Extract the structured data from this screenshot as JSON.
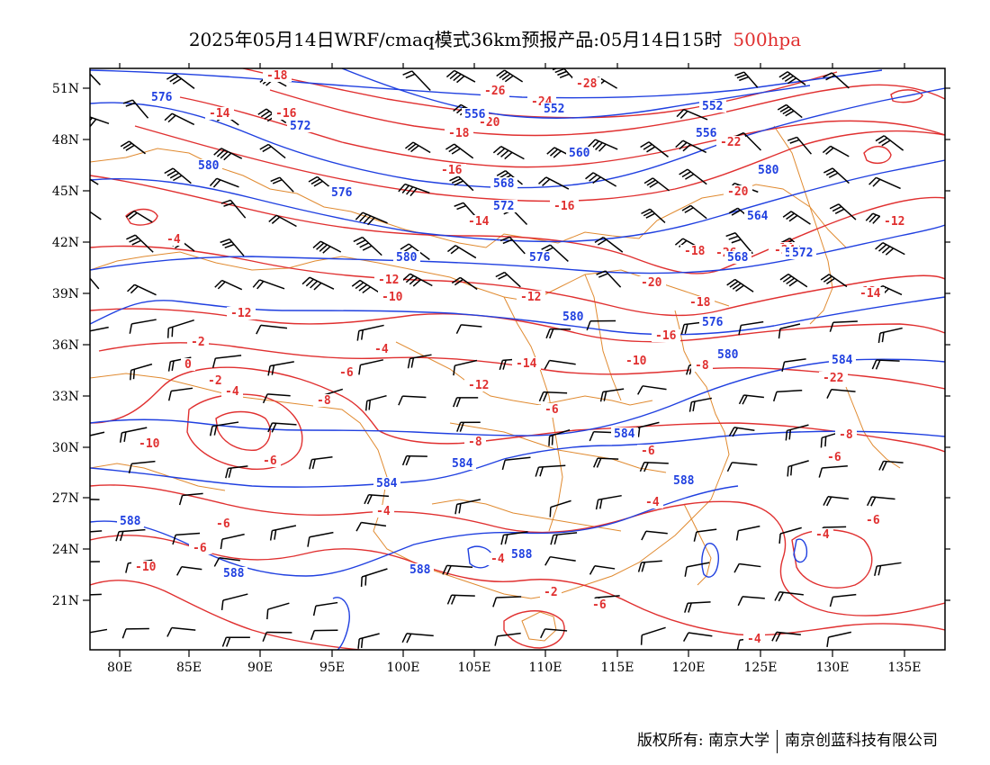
{
  "header": {
    "title": "2025年05月14日WRF/cmaq模式36km预报产品:05月14日15时",
    "level": "500hpa"
  },
  "colors": {
    "temperature": "#e03030",
    "height": "#2040e0",
    "border": "#e08a30",
    "wind": "#000000"
  },
  "axes": {
    "lon_labels": [
      "80E",
      "85E",
      "90E",
      "95E",
      "100E",
      "105E",
      "110E",
      "115E",
      "120E",
      "125E",
      "130E",
      "135E"
    ],
    "lat_labels": [
      "51N",
      "48N",
      "45N",
      "42N",
      "39N",
      "36N",
      "33N",
      "30N",
      "27N",
      "24N",
      "21N"
    ]
  },
  "temperature_labels": [
    "-18",
    "-16",
    "-14",
    "-16",
    "-12",
    "-10",
    "-12",
    "-14",
    "-18",
    "-20",
    "-22",
    "-24",
    "-26",
    "-28",
    "-20",
    "-18",
    "-16",
    "-14",
    "-12",
    "-10",
    "-8",
    "-6",
    "-4",
    "-2",
    "0",
    "-2",
    "-4",
    "-6",
    "-8",
    "-10",
    "-12",
    "-4",
    "-6",
    "-8",
    "-6",
    "-4",
    "-6",
    "-8",
    "-10",
    "-12",
    "-14",
    "-16",
    "-18",
    "-20",
    "-22",
    "-24",
    "-26",
    "-4",
    "-6",
    "-4",
    "-6",
    "-6",
    "-4",
    "-2",
    "-4",
    "-8",
    "-12",
    "-14",
    "-10",
    "-6",
    "-6"
  ],
  "height_labels": [
    "576",
    "572",
    "580",
    "576",
    "580",
    "568",
    "572",
    "576",
    "580",
    "556",
    "552",
    "560",
    "568",
    "556",
    "552",
    "580",
    "564",
    "568",
    "572",
    "576",
    "580",
    "584",
    "584",
    "584",
    "584",
    "588",
    "588",
    "588",
    "588",
    "588"
  ],
  "footer": {
    "copyright": "版权所有: 南京大学",
    "company": "南京创蓝科技有限公司"
  }
}
